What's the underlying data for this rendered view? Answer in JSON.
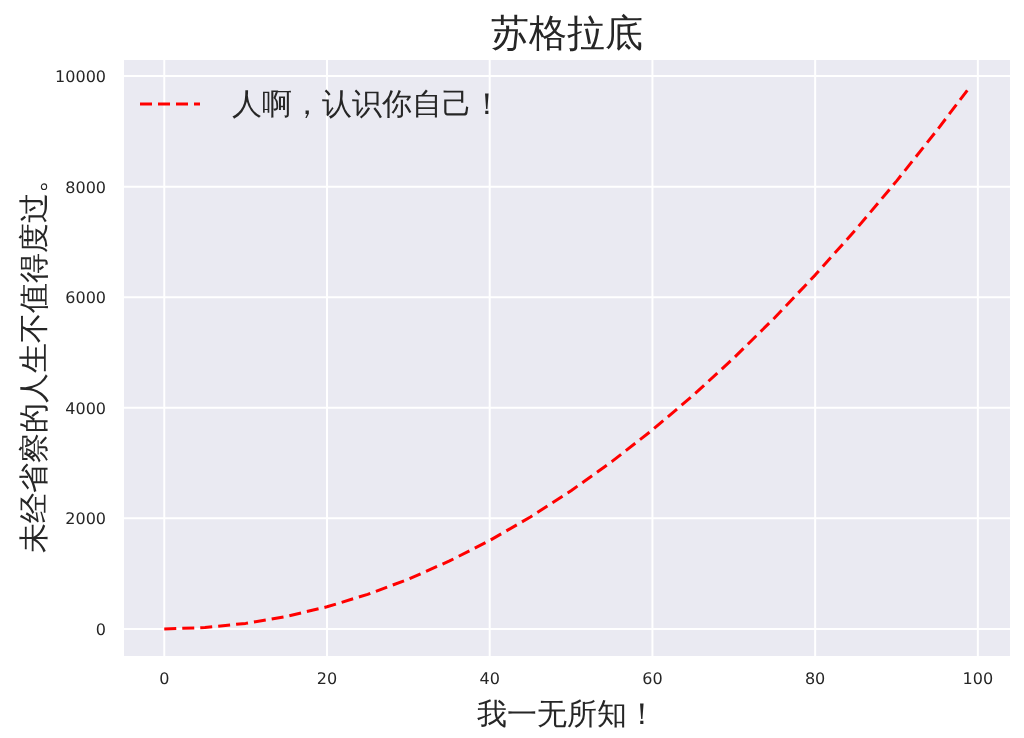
{
  "chart_data": {
    "type": "line",
    "title": "苏格拉底",
    "xlabel": "我一无所知！",
    "ylabel": "未经省察的人生不值得度过。",
    "x": [
      0,
      5,
      10,
      15,
      20,
      25,
      30,
      35,
      40,
      45,
      50,
      55,
      60,
      65,
      70,
      75,
      80,
      85,
      90,
      95,
      99
    ],
    "series": [
      {
        "name": "人啊，认识你自己！",
        "color": "#ff0000",
        "values": [
          0,
          25,
          100,
          225,
          400,
          625,
          900,
          1225,
          1600,
          2025,
          2500,
          3025,
          3600,
          4225,
          4900,
          5625,
          6400,
          7225,
          8100,
          9025,
          9801
        ]
      }
    ],
    "xlim": [
      -4.95,
      103.95
    ],
    "ylim": [
      -490,
      10291
    ],
    "xticks": [
      0,
      20,
      40,
      60,
      80,
      100
    ],
    "yticks": [
      0,
      2000,
      4000,
      6000,
      8000,
      10000
    ],
    "grid": true,
    "legend": "top left",
    "line_style": "dashed",
    "marker": "none"
  }
}
